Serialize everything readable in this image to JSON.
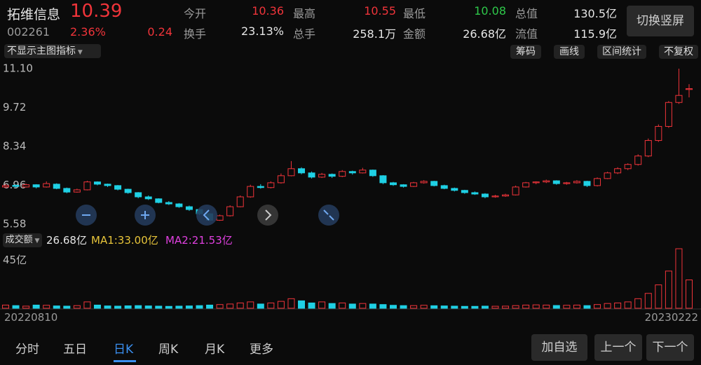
{
  "header": {
    "name": "拓维信息",
    "price": "10.39",
    "code": "002261",
    "change_pct": "2.36%",
    "change": "0.24",
    "stats": [
      {
        "label": "今开",
        "value": "10.36"
      },
      {
        "label": "最高",
        "value": "10.55"
      },
      {
        "label": "最低",
        "value": "10.08"
      },
      {
        "label": "总值",
        "value": "130.5亿"
      },
      {
        "label": "换手",
        "value": "23.13%"
      },
      {
        "label": "总手",
        "value": "258.1万"
      },
      {
        "label": "金额",
        "value": "26.68亿"
      },
      {
        "label": "流值",
        "value": "115.9亿"
      }
    ],
    "button": "切换竖屏"
  },
  "toolbar": {
    "indicator": "不显示主图指标",
    "buttons": [
      "筹码",
      "画线",
      "区间统计",
      "不复权"
    ]
  },
  "chart_data": {
    "type": "candlestick",
    "up_color": "#f0343a",
    "down_color": "#1fd0e4",
    "ylim": [
      5.58,
      11.1
    ],
    "yticks": [
      {
        "value": 11.1,
        "label": "11.10"
      },
      9.72,
      8.34,
      6.96,
      5.58
    ],
    "candles": [
      [
        6.9,
        7.0,
        6.86,
        6.95
      ],
      [
        6.96,
        6.99,
        6.88,
        6.92
      ],
      [
        6.9,
        7.02,
        6.88,
        6.98
      ],
      [
        6.98,
        7.0,
        6.85,
        6.9
      ],
      [
        6.9,
        7.1,
        6.88,
        7.02
      ],
      [
        7.0,
        7.03,
        6.82,
        6.85
      ],
      [
        6.85,
        6.88,
        6.68,
        6.72
      ],
      [
        6.72,
        6.84,
        6.7,
        6.8
      ],
      [
        6.8,
        7.12,
        6.78,
        7.08
      ],
      [
        7.08,
        7.1,
        6.96,
        7.0
      ],
      [
        7.0,
        7.02,
        6.9,
        6.95
      ],
      [
        6.95,
        6.97,
        6.78,
        6.82
      ],
      [
        6.82,
        6.84,
        6.66,
        6.7
      ],
      [
        6.7,
        6.72,
        6.5,
        6.55
      ],
      [
        6.55,
        6.6,
        6.44,
        6.48
      ],
      [
        6.48,
        6.5,
        6.32,
        6.35
      ],
      [
        6.35,
        6.4,
        6.26,
        6.3
      ],
      [
        6.3,
        6.33,
        6.16,
        6.2
      ],
      [
        6.2,
        6.24,
        6.05,
        6.1
      ],
      [
        6.1,
        6.12,
        5.9,
        5.95
      ],
      [
        5.95,
        5.98,
        5.68,
        5.72
      ],
      [
        5.72,
        5.92,
        5.7,
        5.88
      ],
      [
        5.88,
        6.25,
        5.85,
        6.2
      ],
      [
        6.2,
        6.6,
        6.18,
        6.55
      ],
      [
        6.55,
        6.98,
        6.52,
        6.92
      ],
      [
        6.92,
        7.0,
        6.84,
        6.88
      ],
      [
        6.88,
        7.1,
        6.85,
        7.05
      ],
      [
        7.05,
        7.38,
        7.02,
        7.3
      ],
      [
        7.3,
        7.82,
        7.28,
        7.55
      ],
      [
        7.55,
        7.6,
        7.35,
        7.4
      ],
      [
        7.4,
        7.45,
        7.2,
        7.25
      ],
      [
        7.25,
        7.4,
        7.22,
        7.35
      ],
      [
        7.35,
        7.38,
        7.22,
        7.28
      ],
      [
        7.28,
        7.5,
        7.25,
        7.45
      ],
      [
        7.45,
        7.48,
        7.34,
        7.4
      ],
      [
        7.4,
        7.58,
        7.38,
        7.5
      ],
      [
        7.5,
        7.52,
        7.26,
        7.3
      ],
      [
        7.3,
        7.32,
        7.0,
        7.05
      ],
      [
        7.05,
        7.08,
        6.94,
        6.98
      ],
      [
        6.98,
        7.0,
        6.88,
        6.92
      ],
      [
        6.92,
        7.08,
        6.9,
        7.05
      ],
      [
        7.05,
        7.14,
        7.02,
        7.1
      ],
      [
        7.1,
        7.12,
        6.92,
        6.95
      ],
      [
        6.95,
        6.98,
        6.82,
        6.85
      ],
      [
        6.85,
        6.88,
        6.74,
        6.78
      ],
      [
        6.78,
        6.8,
        6.66,
        6.7
      ],
      [
        6.7,
        6.74,
        6.62,
        6.65
      ],
      [
        6.65,
        6.68,
        6.5,
        6.55
      ],
      [
        6.55,
        6.62,
        6.52,
        6.58
      ],
      [
        6.58,
        6.66,
        6.55,
        6.62
      ],
      [
        6.62,
        6.95,
        6.6,
        6.9
      ],
      [
        6.9,
        7.08,
        6.88,
        7.05
      ],
      [
        7.05,
        7.1,
        7.0,
        7.08
      ],
      [
        7.08,
        7.16,
        7.04,
        7.12
      ],
      [
        7.12,
        7.14,
        6.98,
        7.02
      ],
      [
        7.02,
        7.08,
        6.98,
        7.05
      ],
      [
        7.05,
        7.14,
        7.02,
        7.1
      ],
      [
        7.1,
        7.12,
        6.9,
        6.95
      ],
      [
        6.95,
        7.24,
        6.92,
        7.2
      ],
      [
        7.2,
        7.44,
        7.18,
        7.4
      ],
      [
        7.4,
        7.6,
        7.36,
        7.55
      ],
      [
        7.55,
        7.74,
        7.5,
        7.7
      ],
      [
        7.7,
        8.06,
        7.66,
        8.0
      ],
      [
        8.0,
        8.62,
        7.96,
        8.55
      ],
      [
        8.55,
        9.12,
        8.5,
        9.05
      ],
      [
        9.05,
        9.95,
        9.0,
        9.9
      ],
      [
        9.9,
        11.1,
        9.85,
        10.15
      ],
      [
        10.36,
        10.55,
        10.08,
        10.39
      ]
    ],
    "date_labels": [
      "20220810",
      "20230222"
    ],
    "volume": {
      "title": "成交额",
      "value": "26.68亿",
      "ma1": "MA1:33.00亿",
      "ma2": "MA2:21.53亿",
      "ma1_color": "#e8c53a",
      "ma2_color": "#e040e0",
      "ylim": [
        0,
        58
      ],
      "yticks": [
        {
          "value": 45,
          "label": "45亿"
        }
      ],
      "values": [
        3,
        2.5,
        2,
        3,
        2.8,
        2.2,
        2,
        2.5,
        6,
        3,
        2.2,
        2,
        2.3,
        2.5,
        2.2,
        2,
        1.8,
        2,
        2.2,
        2.5,
        3,
        3.5,
        4,
        5,
        6,
        4,
        5,
        6.5,
        9,
        7,
        5,
        6,
        4.5,
        5,
        4,
        4.5,
        4,
        3.5,
        2.8,
        2.5,
        2.5,
        2.8,
        2.4,
        2.2,
        2,
        1.8,
        1.8,
        2,
        1.9,
        2,
        2.5,
        3,
        3.2,
        3,
        2.6,
        2.8,
        3,
        2.5,
        3.5,
        4.5,
        5,
        6,
        9,
        14,
        22,
        35,
        56,
        26.68
      ]
    }
  },
  "tabs": {
    "items": [
      "分时",
      "五日",
      "日K",
      "周K",
      "月K",
      "更多"
    ],
    "selected": 2
  },
  "actions": [
    "加自选",
    "上一个",
    "下一个"
  ]
}
